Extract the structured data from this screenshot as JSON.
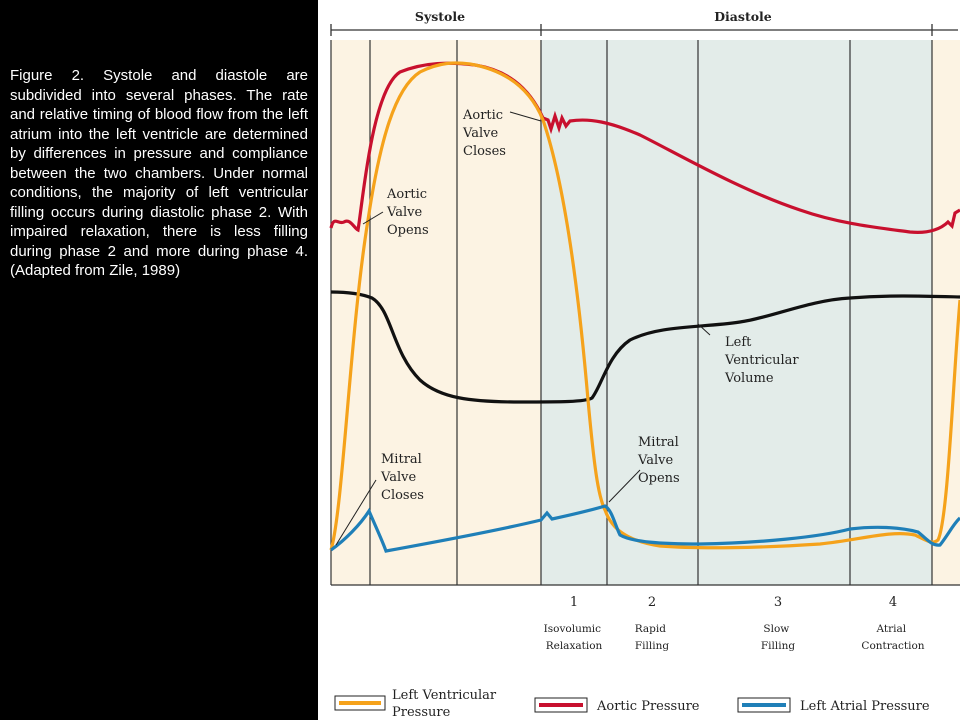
{
  "caption": "Figure 2. Systole and diastole are subdivided into several phases. The rate and relative timing of blood flow from the left atrium into the left ventricle are determined by differences in pressure and compliance between the two chambers. Under normal conditions, the majority of left ventricular filling occurs during diastolic phase 2. With impaired relaxation, there is less filling during phase 2 and more during phase 4. (Adapted from Zile, 1989)",
  "phases": {
    "systole": "Systole",
    "diastole": "Diastole"
  },
  "annotations": {
    "aortic_valve_closes": [
      "Aortic",
      "Valve",
      "Closes"
    ],
    "aortic_valve_opens": [
      "Aortic",
      "Valve",
      "Opens"
    ],
    "mitral_valve_closes": [
      "Mitral",
      "Valve",
      "Closes"
    ],
    "mitral_valve_opens": [
      "Mitral",
      "Valve",
      "Opens"
    ],
    "left_ventricular_volume": [
      "Left",
      "Ventricular",
      "Volume"
    ]
  },
  "diastolic_phases": [
    {
      "number": "1",
      "label": [
        "Isovolumic",
        "Relaxation"
      ]
    },
    {
      "number": "2",
      "label": [
        "Rapid",
        "Filling"
      ]
    },
    {
      "number": "3",
      "label": [
        "Slow",
        "Filling"
      ]
    },
    {
      "number": "4",
      "label": [
        "Atrial",
        "Contraction"
      ]
    }
  ],
  "legend": [
    {
      "label": [
        "Left Ventricular",
        "Pressure"
      ],
      "color": "#f5a21b"
    },
    {
      "label": [
        "Aortic Pressure"
      ],
      "color": "#c8102e"
    },
    {
      "label": [
        "Left Atrial Pressure"
      ],
      "color": "#1f7fb8"
    }
  ],
  "colors": {
    "systole_band": "#fcf3e3",
    "diastole_band": "#e3ece9",
    "lv_pressure": "#f5a21b",
    "aortic_pressure": "#c8102e",
    "la_pressure": "#1f7fb8",
    "lv_volume": "#111111"
  }
}
